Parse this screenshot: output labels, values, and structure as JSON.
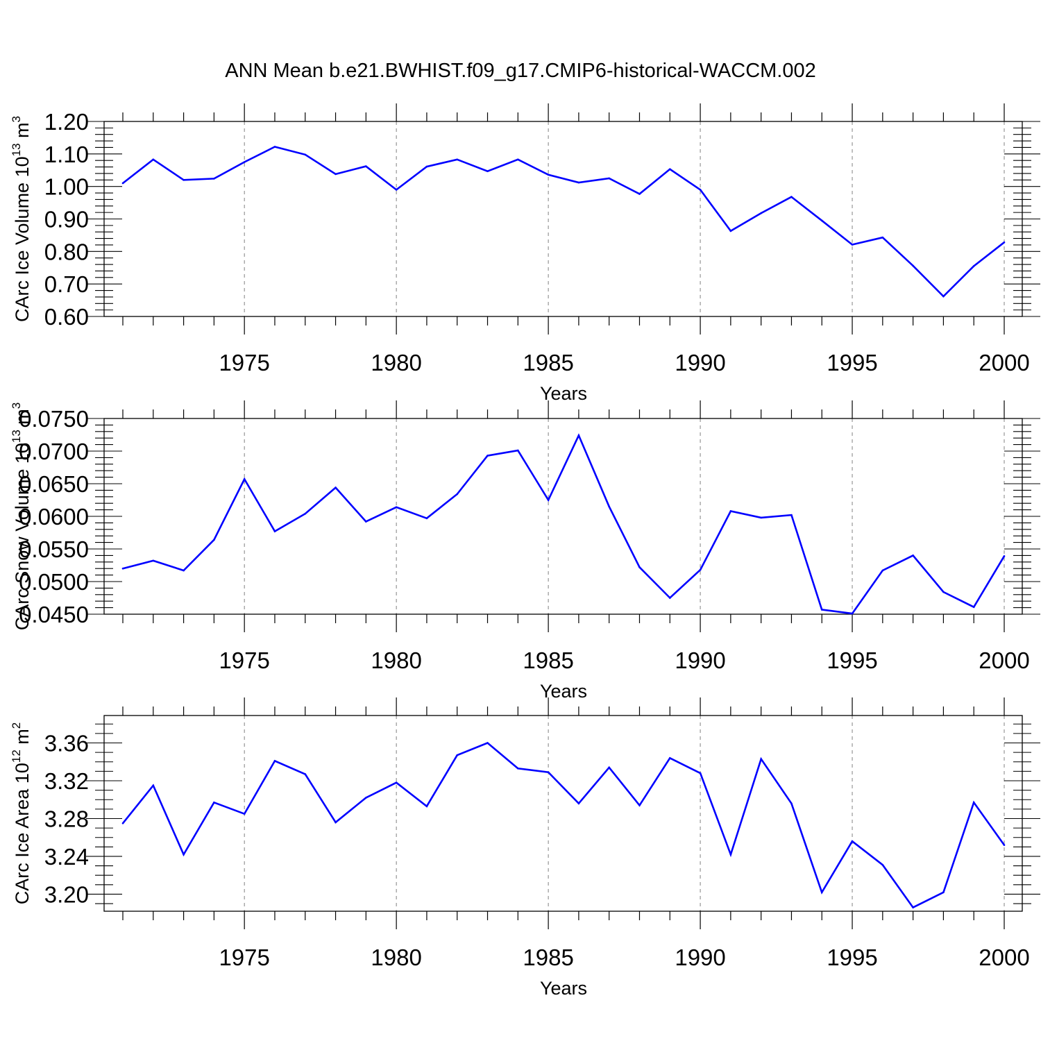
{
  "figure_title": "ANN Mean b.e21.BWHIST.f09_g17.CMIP6-historical-WACCM.002",
  "colors": {
    "line": "#0000ff",
    "frame": "#000000",
    "grid": "#808080"
  },
  "chart_data": [
    {
      "type": "line",
      "xlabel": "Years",
      "ylabel": {
        "main": "CArc Ice Volume 10",
        "exponent": "13",
        "unit": " m",
        "unit_exponent": "3"
      },
      "xlim": [
        1971,
        2000
      ],
      "ylim": [
        0.6,
        1.2
      ],
      "x_ticks": [
        1975,
        1980,
        1985,
        1990,
        1995,
        2000
      ],
      "y_ticks": [
        "0.60",
        "0.70",
        "0.80",
        "0.90",
        "1.00",
        "1.10",
        "1.20"
      ],
      "grid": "vertical dashed at major x ticks",
      "x": [
        1971,
        1972,
        1973,
        1974,
        1975,
        1976,
        1977,
        1978,
        1979,
        1980,
        1981,
        1982,
        1983,
        1984,
        1985,
        1986,
        1987,
        1988,
        1989,
        1990,
        1991,
        1992,
        1993,
        1994,
        1995,
        1996,
        1997,
        1998,
        1999,
        2000
      ],
      "values": [
        1.01,
        1.083,
        1.02,
        1.024,
        1.075,
        1.122,
        1.098,
        1.038,
        1.062,
        0.99,
        1.061,
        1.083,
        1.047,
        1.083,
        1.036,
        1.012,
        1.025,
        0.977,
        1.053,
        0.99,
        0.863,
        0.918,
        0.968,
        0.895,
        0.821,
        0.843,
        0.756,
        0.662,
        0.755,
        0.828
      ]
    },
    {
      "type": "line",
      "xlabel": "Years",
      "ylabel": {
        "main": "CArc Snow Volume 10",
        "exponent": "13",
        "unit": " m",
        "unit_exponent": "3"
      },
      "xlim": [
        1971,
        2000
      ],
      "ylim": [
        0.045,
        0.075
      ],
      "x_ticks": [
        1975,
        1980,
        1985,
        1990,
        1995,
        2000
      ],
      "y_ticks": [
        "0.0450",
        "0.0500",
        "0.0550",
        "0.0600",
        "0.0650",
        "0.0700",
        "0.0750"
      ],
      "grid": "vertical dashed at major x ticks",
      "x": [
        1971,
        1972,
        1973,
        1974,
        1975,
        1976,
        1977,
        1978,
        1979,
        1980,
        1981,
        1982,
        1983,
        1984,
        1985,
        1986,
        1987,
        1988,
        1989,
        1990,
        1991,
        1992,
        1993,
        1994,
        1995,
        1996,
        1997,
        1998,
        1999,
        2000
      ],
      "values": [
        0.052,
        0.0532,
        0.0517,
        0.0564,
        0.0657,
        0.0577,
        0.0604,
        0.0644,
        0.0592,
        0.0614,
        0.0597,
        0.0634,
        0.0693,
        0.0701,
        0.0625,
        0.0724,
        0.0615,
        0.0522,
        0.0475,
        0.0518,
        0.0608,
        0.0598,
        0.0602,
        0.0457,
        0.0451,
        0.0517,
        0.054,
        0.0484,
        0.0461,
        0.0539
      ]
    },
    {
      "type": "line",
      "xlabel": "Years",
      "ylabel": {
        "main": "CArc Ice Area 10",
        "exponent": "12",
        "unit": " m",
        "unit_exponent": "2"
      },
      "xlim": [
        1971,
        2000
      ],
      "ylim": [
        3.182,
        3.389
      ],
      "x_ticks": [
        1975,
        1980,
        1985,
        1990,
        1995,
        2000
      ],
      "y_ticks": [
        "3.20",
        "3.24",
        "3.28",
        "3.32",
        "3.36"
      ],
      "grid": "vertical dashed at major x ticks",
      "x": [
        1971,
        1972,
        1973,
        1974,
        1975,
        1976,
        1977,
        1978,
        1979,
        1980,
        1981,
        1982,
        1983,
        1984,
        1985,
        1986,
        1987,
        1988,
        1989,
        1990,
        1991,
        1992,
        1993,
        1994,
        1995,
        1996,
        1997,
        1998,
        1999,
        2000
      ],
      "values": [
        3.275,
        3.315,
        3.242,
        3.297,
        3.285,
        3.341,
        3.327,
        3.276,
        3.302,
        3.318,
        3.293,
        3.347,
        3.36,
        3.333,
        3.329,
        3.296,
        3.334,
        3.294,
        3.344,
        3.328,
        3.242,
        3.343,
        3.296,
        3.202,
        3.256,
        3.231,
        3.186,
        3.202,
        3.297,
        3.252
      ]
    }
  ]
}
